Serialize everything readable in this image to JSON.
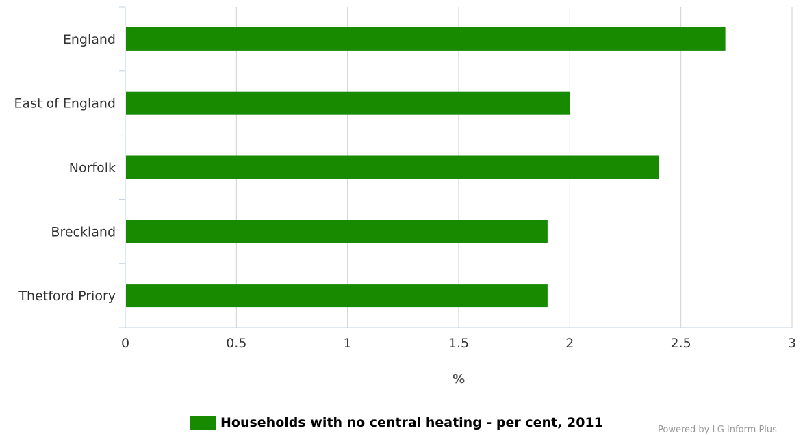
{
  "chart_data": {
    "type": "bar",
    "orientation": "horizontal",
    "categories": [
      "England",
      "East of England",
      "Norfolk",
      "Breckland",
      "Thetford Priory"
    ],
    "series": [
      {
        "name": "Households with no central heating - per cent, 2011",
        "values": [
          2.7,
          2.0,
          2.4,
          1.9,
          1.9
        ],
        "color": "#178a00"
      }
    ],
    "xlabel": "%",
    "xlim": [
      0,
      3
    ],
    "xticks": [
      "0",
      "0.5",
      "1",
      "1.5",
      "2",
      "2.5",
      "3"
    ],
    "grid": true,
    "legend_position": "bottom-center"
  },
  "credit": "Powered by LG Inform Plus"
}
